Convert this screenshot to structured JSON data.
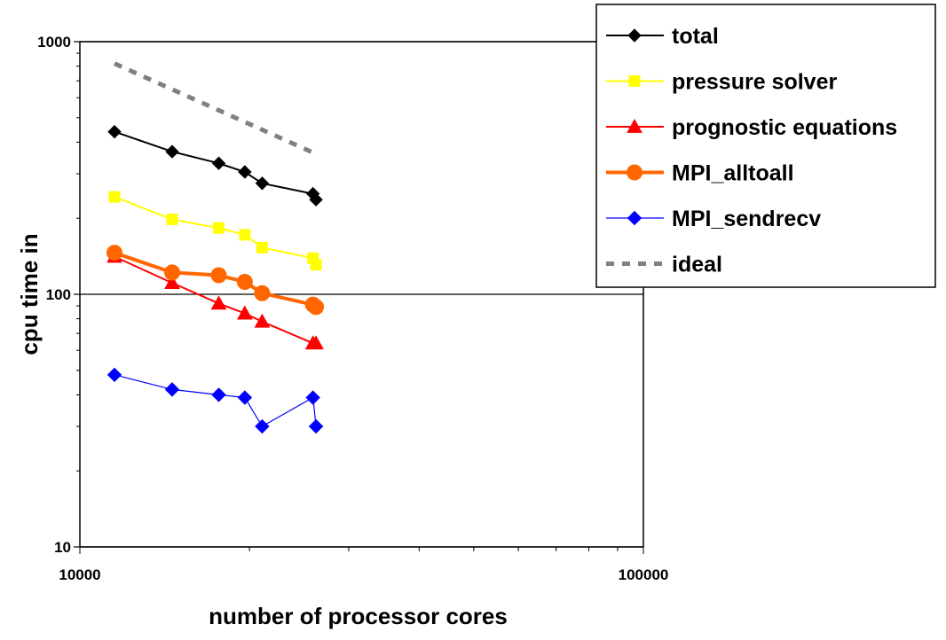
{
  "chart_data": {
    "type": "line",
    "xlabel": "number of processor cores",
    "ylabel": "cpu time in",
    "x_scale": "log",
    "y_scale": "log",
    "xlim": [
      10000,
      100000
    ],
    "ylim": [
      10,
      1000
    ],
    "x_ticks": [
      "10000",
      "100000"
    ],
    "y_ticks": [
      "10",
      "100",
      "1000"
    ],
    "grid": "horizontal major",
    "legend_position": "top-right",
    "series": [
      {
        "name": "total",
        "color": "#000000",
        "marker": "diamond",
        "dash": "solid",
        "x": [
          11520,
          14580,
          17640,
          19620,
          21060,
          25920,
          26244
        ],
        "y": [
          440,
          367,
          330,
          305,
          275,
          250,
          237
        ]
      },
      {
        "name": "pressure solver",
        "color": "#ffff00",
        "marker": "square",
        "dash": "solid",
        "x": [
          11520,
          14580,
          17640,
          19620,
          21060,
          25920,
          26244
        ],
        "y": [
          243,
          198,
          183,
          172,
          153,
          139,
          131
        ]
      },
      {
        "name": "prognostic equations",
        "color": "#ff0000",
        "marker": "triangle",
        "dash": "solid",
        "x": [
          11520,
          14580,
          17640,
          19620,
          21060,
          25920,
          26244
        ],
        "y": [
          141,
          111,
          92,
          84,
          78,
          64,
          64
        ]
      },
      {
        "name": "MPI_alltoall",
        "color": "#ff6600",
        "marker": "circle",
        "dash": "solid",
        "x": [
          11520,
          14580,
          17640,
          19620,
          21060,
          25920,
          26244
        ],
        "y": [
          146,
          122,
          119,
          112,
          101,
          91,
          89
        ]
      },
      {
        "name": "MPI_sendrecv",
        "color": "#0000ff",
        "marker": "diamond",
        "dash": "solid",
        "x": [
          11520,
          14580,
          17640,
          19620,
          21060,
          25920,
          26244
        ],
        "y": [
          48,
          42,
          40,
          39,
          30,
          39,
          30
        ]
      },
      {
        "name": "ideal",
        "color": "#808080",
        "marker": "none",
        "dash": "dotted",
        "x": [
          11520,
          25920
        ],
        "y": [
          820,
          364
        ]
      }
    ]
  }
}
